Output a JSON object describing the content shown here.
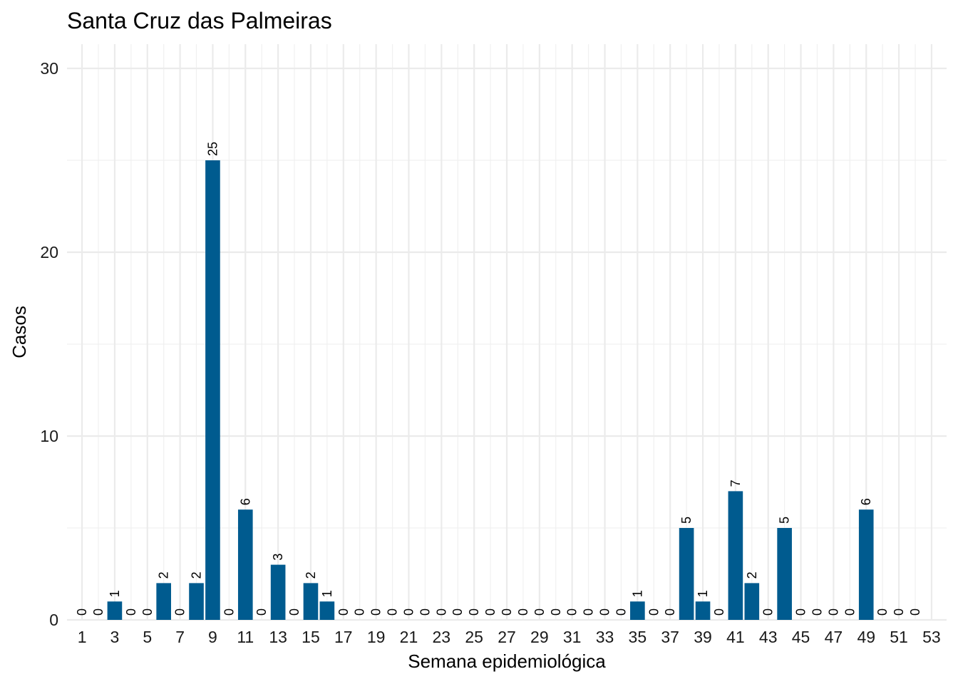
{
  "chart_data": {
    "type": "bar",
    "title": "Santa Cruz das Palmeiras",
    "xlabel": "Semana epidemiológica",
    "ylabel": "Casos",
    "x": [
      1,
      2,
      3,
      4,
      5,
      6,
      7,
      8,
      9,
      10,
      11,
      12,
      13,
      14,
      15,
      16,
      17,
      18,
      19,
      20,
      21,
      22,
      23,
      24,
      25,
      26,
      27,
      28,
      29,
      30,
      31,
      32,
      33,
      34,
      35,
      36,
      37,
      38,
      39,
      40,
      41,
      42,
      43,
      44,
      45,
      46,
      47,
      48,
      49,
      50,
      51,
      52
    ],
    "values": [
      0,
      0,
      1,
      0,
      0,
      2,
      0,
      2,
      25,
      0,
      6,
      0,
      3,
      0,
      2,
      1,
      0,
      0,
      0,
      0,
      0,
      0,
      0,
      0,
      0,
      0,
      0,
      0,
      0,
      0,
      0,
      0,
      0,
      0,
      1,
      0,
      0,
      5,
      1,
      0,
      7,
      2,
      0,
      5,
      0,
      0,
      0,
      0,
      6,
      0,
      0,
      0
    ],
    "x_ticks": [
      "1",
      "3",
      "5",
      "7",
      "9",
      "11",
      "13",
      "15",
      "17",
      "19",
      "21",
      "23",
      "25",
      "27",
      "29",
      "31",
      "33",
      "35",
      "37",
      "39",
      "41",
      "43",
      "45",
      "47",
      "49",
      "51",
      "53"
    ],
    "y_ticks": [
      "0",
      "10",
      "20",
      "30"
    ],
    "xlim": [
      0.08,
      53.92
    ],
    "ylim": [
      0,
      30
    ],
    "bar_color": "#005b8f",
    "grid": true,
    "legend": "none"
  }
}
